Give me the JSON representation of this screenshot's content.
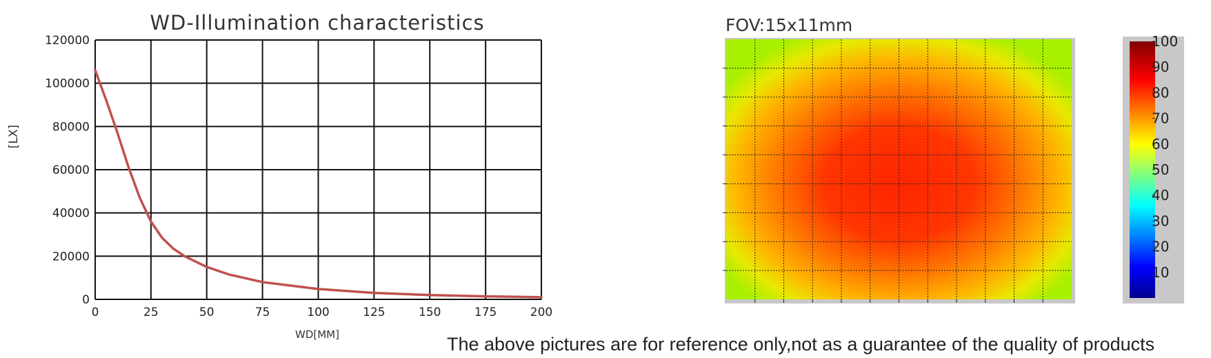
{
  "chart_data": [
    {
      "type": "line",
      "title": "WD-Illumination characteristics",
      "xlabel": "WD[MM]",
      "ylabel": "[LX]",
      "xlim": [
        0,
        200
      ],
      "ylim": [
        0,
        120000
      ],
      "xticks": [
        0,
        25,
        50,
        75,
        100,
        125,
        150,
        175,
        200
      ],
      "yticks": [
        0,
        20000,
        40000,
        60000,
        80000,
        100000,
        120000
      ],
      "grid": true,
      "series": [
        {
          "color": "#c0504d",
          "x": [
            0,
            5,
            10,
            15,
            20,
            25,
            30,
            35,
            40,
            50,
            60,
            75,
            100,
            125,
            150,
            175,
            200
          ],
          "y": [
            106000,
            92000,
            77000,
            61000,
            47000,
            36000,
            28500,
            23500,
            20000,
            15000,
            11500,
            8000,
            4800,
            3000,
            2000,
            1400,
            1000
          ]
        }
      ]
    },
    {
      "type": "heatmap",
      "title": "FOV:15x11mm",
      "colorbar": {
        "min": 0,
        "max": 100,
        "ticks": [
          10,
          20,
          30,
          40,
          50,
          60,
          70,
          80,
          90,
          100
        ],
        "colormap": "jet"
      },
      "grid": {
        "columns": 12,
        "rows": 9,
        "style": "dotted"
      },
      "center_value": 84,
      "corner_value": 57
    }
  ],
  "footer": {
    "disclaimer": "The above pictures are for reference only,not as a guarantee of the quality of products"
  }
}
